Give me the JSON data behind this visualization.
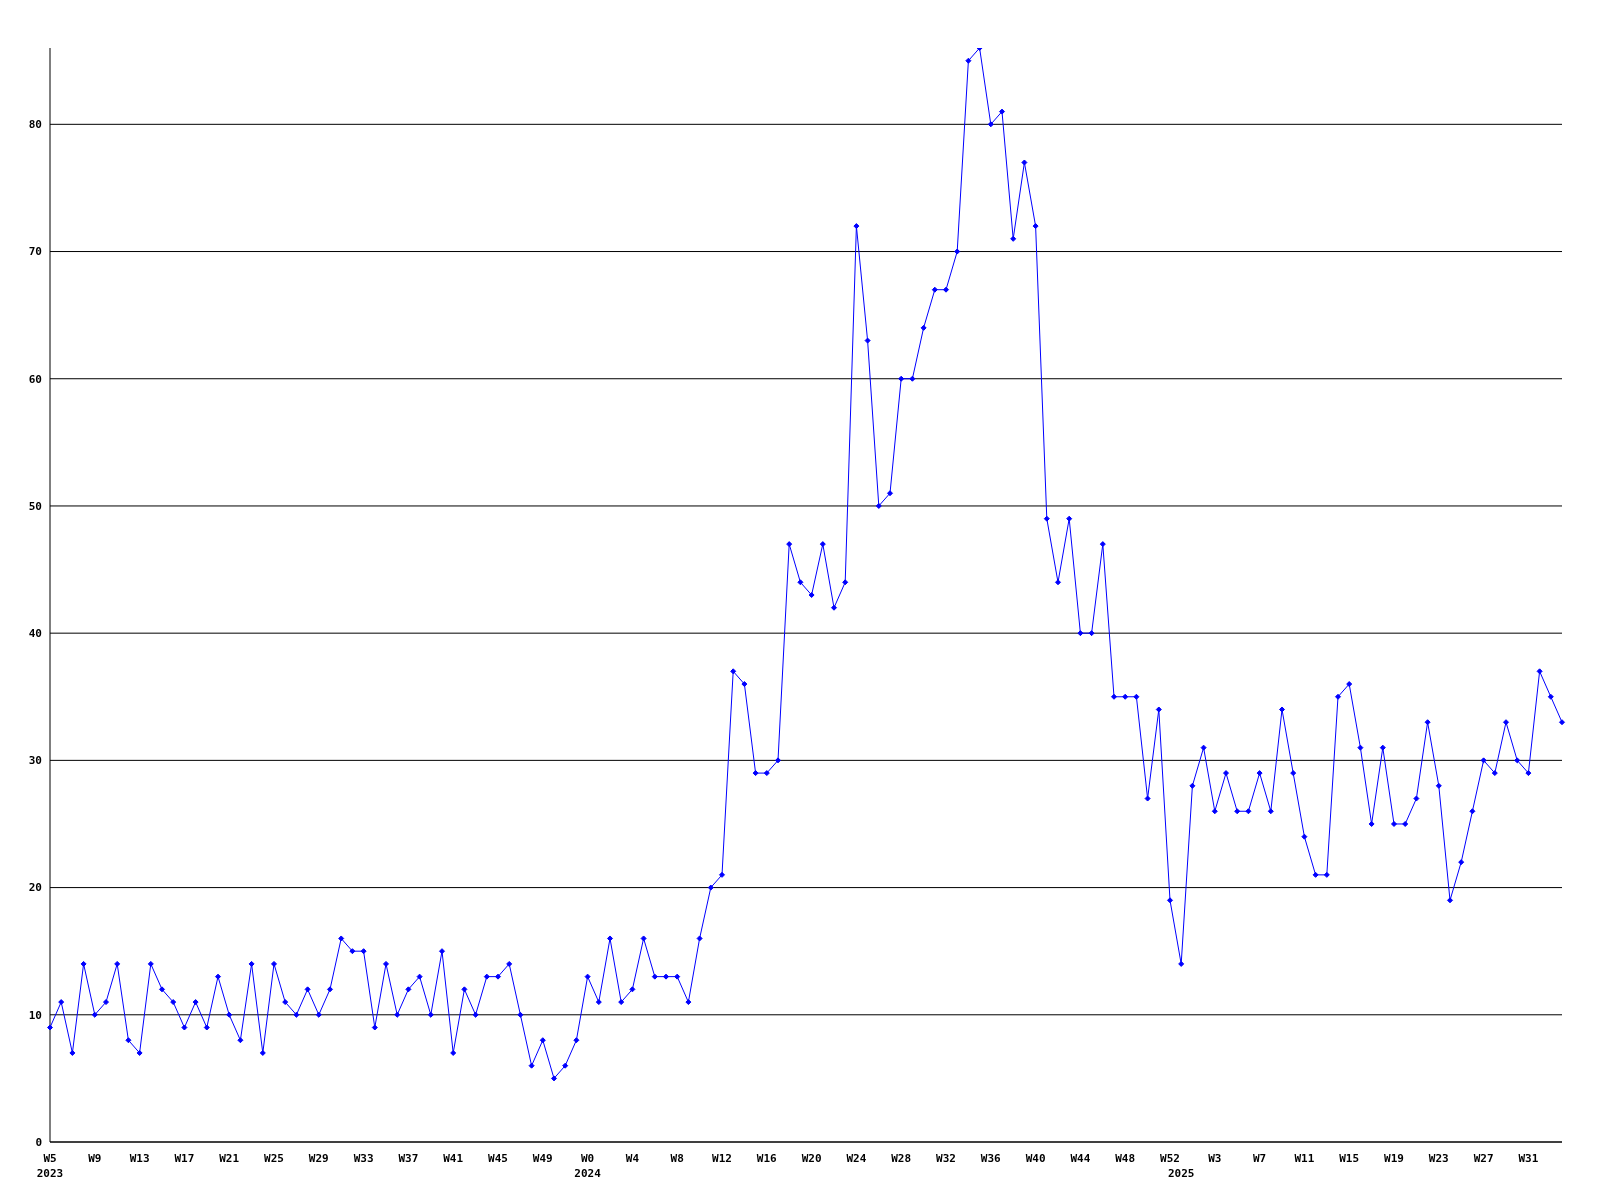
{
  "chart_data": {
    "type": "line",
    "categories": [
      "W5\n2023",
      null,
      null,
      null,
      "W9",
      null,
      null,
      null,
      "W13",
      null,
      null,
      null,
      "W17",
      null,
      null,
      null,
      "W21",
      null,
      null,
      null,
      "W25",
      null,
      null,
      null,
      "W29",
      null,
      null,
      null,
      "W33",
      null,
      null,
      null,
      "W37",
      null,
      null,
      null,
      "W41",
      null,
      null,
      null,
      "W45",
      null,
      null,
      null,
      "W49",
      null,
      null,
      null,
      "W0\n2024",
      null,
      null,
      null,
      "W4",
      null,
      null,
      null,
      "W8",
      null,
      null,
      null,
      "W12",
      null,
      null,
      null,
      "W16",
      null,
      null,
      null,
      "W20",
      null,
      null,
      null,
      "W24",
      null,
      null,
      null,
      "W28",
      null,
      null,
      null,
      "W32",
      null,
      null,
      null,
      "W36",
      null,
      null,
      null,
      "W40",
      null,
      null,
      null,
      "W44",
      null,
      null,
      null,
      "W48",
      null,
      null,
      null,
      "W52",
      "\n2025",
      null,
      null,
      "W3",
      null,
      null,
      null,
      "W7",
      null,
      null,
      null,
      "W11",
      null,
      null,
      null,
      "W15",
      null,
      null,
      null,
      "W19",
      null,
      null,
      null,
      "W23",
      null,
      null,
      null,
      "W27",
      null,
      null,
      null,
      "W31",
      null,
      null,
      null
    ],
    "values": [
      9,
      11,
      7,
      14,
      10,
      11,
      14,
      8,
      7,
      14,
      12,
      11,
      9,
      11,
      9,
      13,
      10,
      8,
      14,
      7,
      14,
      11,
      10,
      12,
      10,
      12,
      16,
      15,
      15,
      9,
      14,
      10,
      12,
      13,
      10,
      15,
      7,
      12,
      10,
      13,
      13,
      14,
      10,
      6,
      8,
      5,
      6,
      8,
      13,
      11,
      16,
      11,
      12,
      16,
      13,
      13,
      13,
      11,
      16,
      20,
      21,
      37,
      36,
      29,
      29,
      30,
      47,
      44,
      43,
      47,
      42,
      44,
      72,
      63,
      50,
      51,
      60,
      60,
      64,
      67,
      67,
      70,
      85,
      86,
      80,
      81,
      71,
      77,
      72,
      49,
      44,
      49,
      40,
      40,
      47,
      35,
      35,
      35,
      27,
      34,
      19,
      14,
      28,
      31,
      26,
      29,
      26,
      26,
      29,
      26,
      34,
      29,
      24,
      21,
      21,
      35,
      36,
      31,
      25,
      31,
      25,
      25,
      27,
      33,
      28,
      19,
      22,
      26,
      30,
      29,
      33,
      30,
      29,
      37,
      35,
      33
    ],
    "color": "#0000ff",
    "ylim": [
      0,
      86
    ],
    "yticks": [
      0,
      10,
      20,
      30,
      40,
      50,
      60,
      70,
      80
    ],
    "grid": "y",
    "marker": "diamond",
    "line_style": "solid",
    "legend": false
  }
}
